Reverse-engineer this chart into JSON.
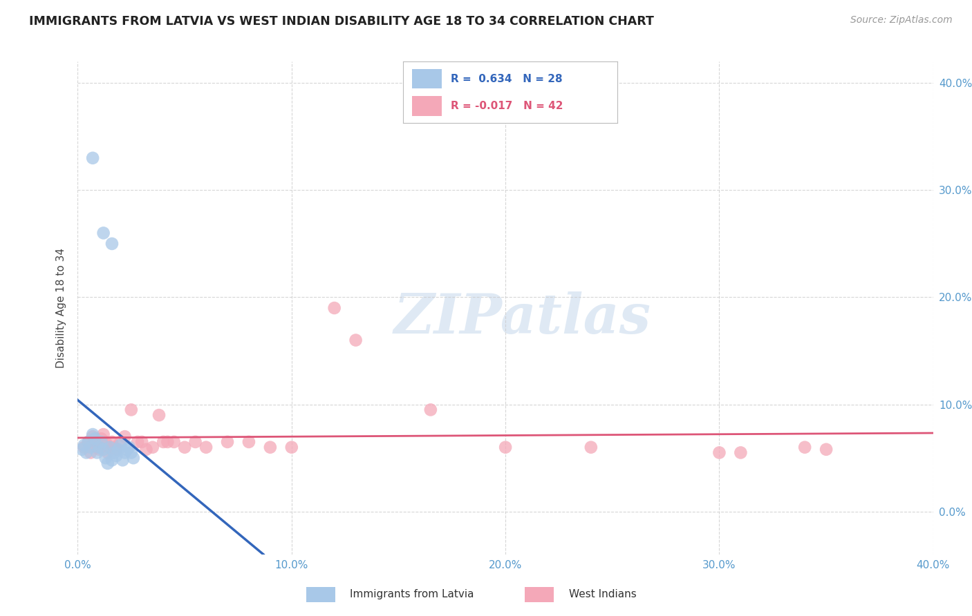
{
  "title": "IMMIGRANTS FROM LATVIA VS WEST INDIAN DISABILITY AGE 18 TO 34 CORRELATION CHART",
  "source": "Source: ZipAtlas.com",
  "ylabel": "Disability Age 18 to 34",
  "xlim": [
    0.0,
    0.4
  ],
  "ylim": [
    -0.04,
    0.42
  ],
  "x_ticks": [
    0.0,
    0.1,
    0.2,
    0.3,
    0.4
  ],
  "x_tick_labels": [
    "0.0%",
    "",
    "",
    "",
    "40.0%"
  ],
  "y_ticks": [
    0.0,
    0.1,
    0.2,
    0.3,
    0.4
  ],
  "y_tick_labels": [
    "",
    "10.0%",
    "20.0%",
    "30.0%",
    "40.0%"
  ],
  "latvia_R": 0.634,
  "latvia_N": 28,
  "west_indian_R": -0.017,
  "west_indian_N": 42,
  "latvia_color": "#a8c8e8",
  "west_indian_color": "#f4a8b8",
  "latvia_line_color": "#3366bb",
  "west_indian_line_color": "#dd5577",
  "background_color": "#ffffff",
  "grid_color": "#cccccc",
  "latvia_points_x": [
    0.002,
    0.003,
    0.004,
    0.005,
    0.006,
    0.007,
    0.008,
    0.009,
    0.01,
    0.011,
    0.012,
    0.013,
    0.014,
    0.015,
    0.016,
    0.017,
    0.018,
    0.019,
    0.02,
    0.021,
    0.022,
    0.023,
    0.024,
    0.025,
    0.026,
    0.007,
    0.012,
    0.016
  ],
  "latvia_points_y": [
    0.058,
    0.062,
    0.055,
    0.065,
    0.06,
    0.072,
    0.068,
    0.055,
    0.06,
    0.065,
    0.058,
    0.05,
    0.045,
    0.06,
    0.048,
    0.055,
    0.052,
    0.058,
    0.062,
    0.048,
    0.055,
    0.058,
    0.06,
    0.055,
    0.05,
    0.33,
    0.26,
    0.25
  ],
  "west_indian_points_x": [
    0.003,
    0.005,
    0.006,
    0.007,
    0.008,
    0.009,
    0.01,
    0.011,
    0.012,
    0.013,
    0.014,
    0.015,
    0.016,
    0.017,
    0.018,
    0.02,
    0.022,
    0.025,
    0.028,
    0.03,
    0.032,
    0.035,
    0.038,
    0.04,
    0.042,
    0.045,
    0.05,
    0.055,
    0.06,
    0.07,
    0.08,
    0.09,
    0.1,
    0.12,
    0.13,
    0.165,
    0.2,
    0.24,
    0.3,
    0.31,
    0.34,
    0.35
  ],
  "west_indian_points_y": [
    0.06,
    0.065,
    0.055,
    0.07,
    0.065,
    0.06,
    0.058,
    0.068,
    0.072,
    0.065,
    0.055,
    0.06,
    0.065,
    0.06,
    0.058,
    0.065,
    0.07,
    0.095,
    0.065,
    0.065,
    0.058,
    0.06,
    0.09,
    0.065,
    0.065,
    0.065,
    0.06,
    0.065,
    0.06,
    0.065,
    0.065,
    0.06,
    0.06,
    0.19,
    0.16,
    0.095,
    0.06,
    0.06,
    0.055,
    0.055,
    0.06,
    0.058
  ]
}
